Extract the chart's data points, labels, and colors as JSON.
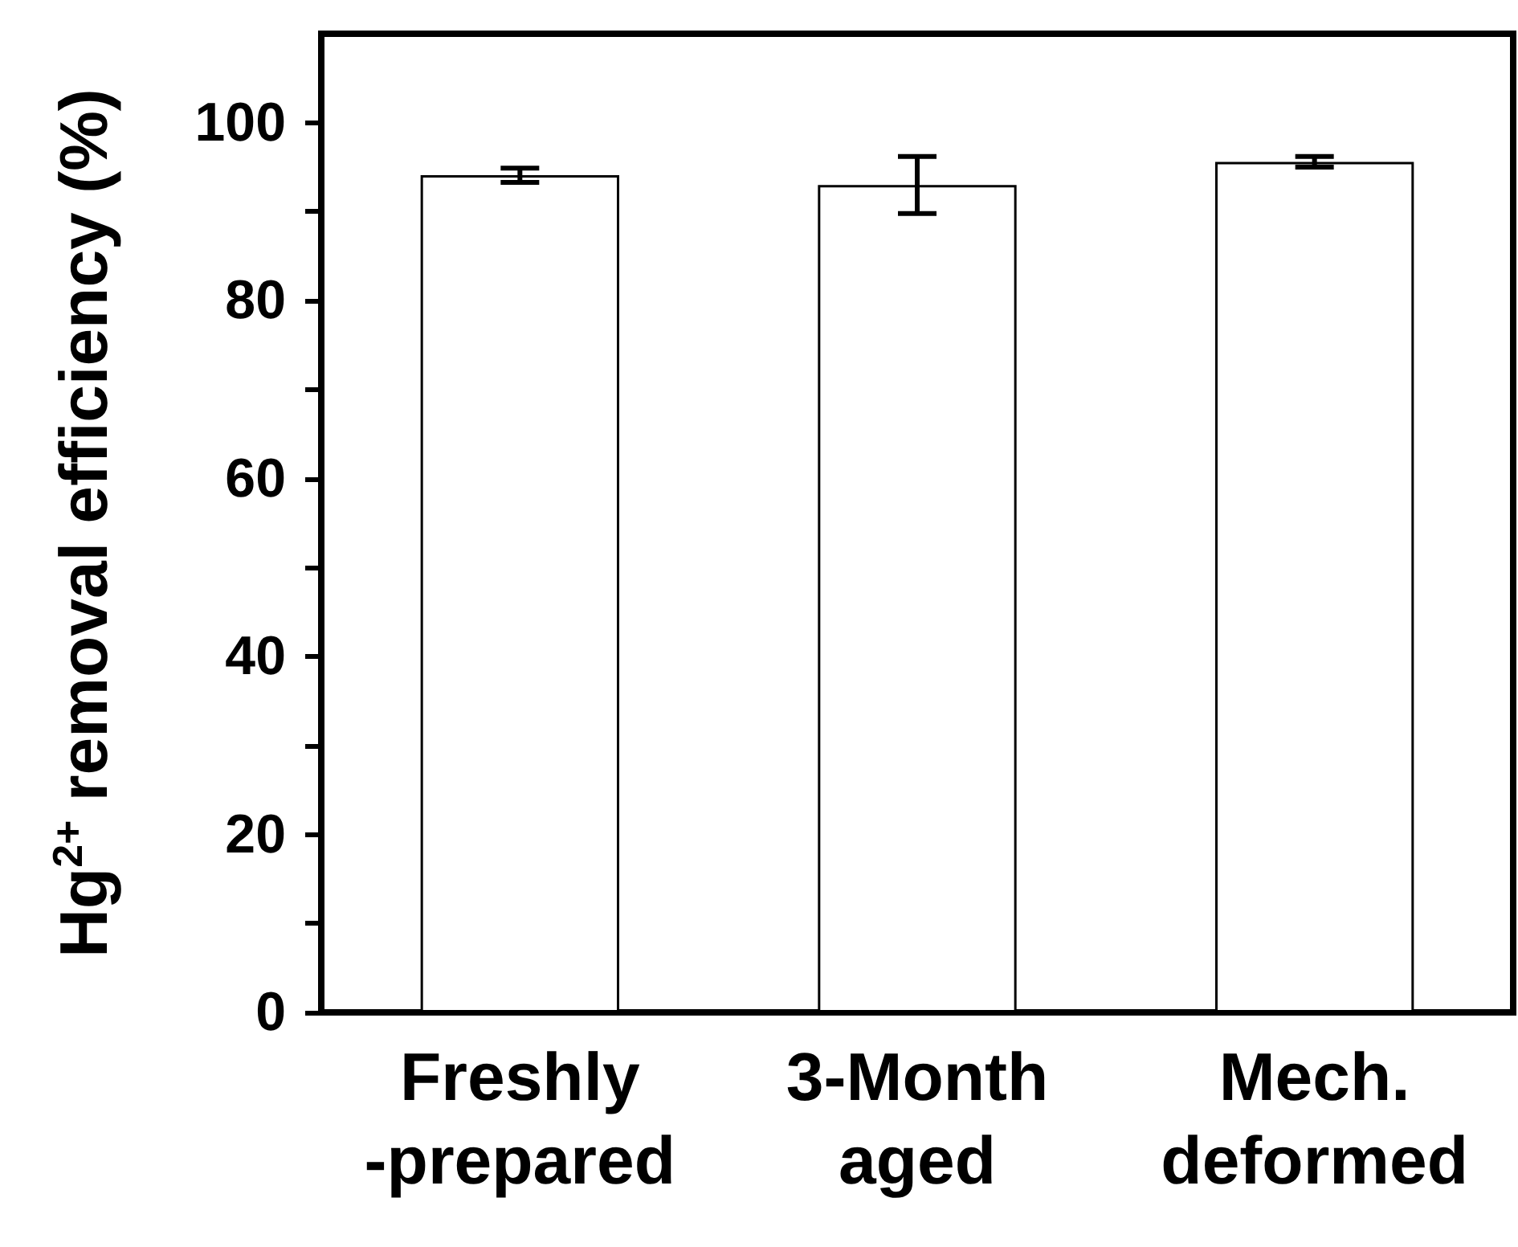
{
  "chart_data": {
    "type": "bar",
    "ylabel": "Hg$^{2+}$ removal efficiency (%)",
    "categories": [
      "Freshly\n-prepared",
      "3-Month\naged",
      "Mech.\ndeformed"
    ],
    "values": [
      94.1,
      93.0,
      95.6
    ],
    "errors": [
      0.8,
      3.2,
      0.6
    ],
    "color": "#ffffff",
    "ylim": [
      0,
      110
    ],
    "yticks": [
      0,
      {
        "value": 10,
        "label": null
      },
      20,
      {
        "value": 30,
        "label": null
      },
      40,
      {
        "value": 50,
        "label": null
      },
      60,
      {
        "value": 70,
        "label": null
      },
      80,
      {
        "value": 90,
        "label": null
      },
      100
    ],
    "grid": false
  }
}
